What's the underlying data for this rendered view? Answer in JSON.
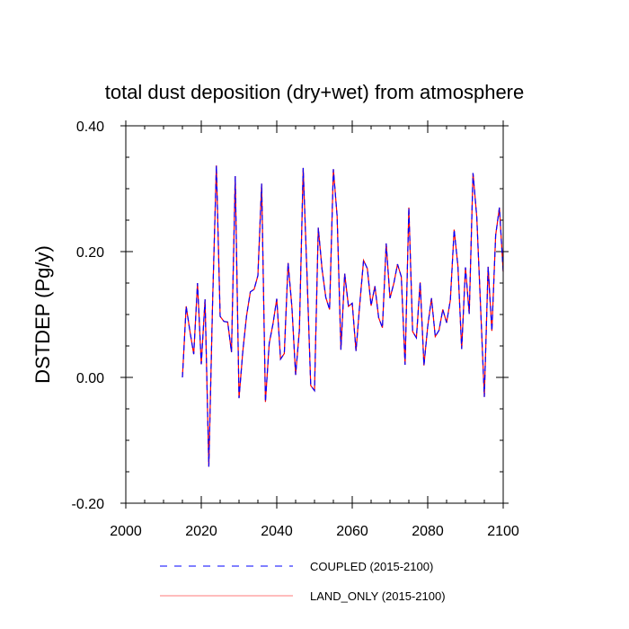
{
  "chart_data": {
    "type": "line",
    "title": "total dust deposition (dry+wet) from atmosphere",
    "xlabel": "",
    "ylabel": "DSTDEP  (Pg/y)",
    "xlim": [
      2000,
      2100
    ],
    "ylim": [
      -0.2,
      0.4
    ],
    "xticks": [
      2000,
      2020,
      2040,
      2060,
      2080,
      2100
    ],
    "xtick_labels": [
      "2000",
      "2020",
      "2040",
      "2060",
      "2080",
      "2100"
    ],
    "yticks": [
      -0.2,
      0.0,
      0.2,
      0.4
    ],
    "ytick_labels": [
      "-0.20",
      "0.00",
      "0.20",
      "0.40"
    ],
    "x": [
      2015,
      2016,
      2017,
      2018,
      2019,
      2020,
      2021,
      2022,
      2023,
      2024,
      2025,
      2026,
      2027,
      2028,
      2029,
      2030,
      2031,
      2032,
      2033,
      2034,
      2035,
      2036,
      2037,
      2038,
      2039,
      2040,
      2041,
      2042,
      2043,
      2044,
      2045,
      2046,
      2047,
      2048,
      2049,
      2050,
      2051,
      2052,
      2053,
      2054,
      2055,
      2056,
      2057,
      2058,
      2059,
      2060,
      2061,
      2062,
      2063,
      2064,
      2065,
      2066,
      2067,
      2068,
      2069,
      2070,
      2071,
      2072,
      2073,
      2074,
      2075,
      2076,
      2077,
      2078,
      2079,
      2080,
      2081,
      2082,
      2083,
      2084,
      2085,
      2086,
      2087,
      2088,
      2089,
      2090,
      2091,
      2092,
      2093,
      2094,
      2095,
      2096,
      2097,
      2098,
      2099,
      2100
    ],
    "series": [
      {
        "name": "COUPLED (2015-2100)",
        "color": "#0000ff",
        "style": "dashed",
        "values": [
          0.0,
          0.113,
          0.073,
          0.037,
          0.15,
          0.021,
          0.124,
          -0.142,
          0.12,
          0.337,
          0.097,
          0.089,
          0.088,
          0.04,
          0.32,
          -0.033,
          0.041,
          0.098,
          0.136,
          0.14,
          0.162,
          0.308,
          -0.039,
          0.054,
          0.085,
          0.125,
          0.029,
          0.038,
          0.182,
          0.113,
          0.004,
          0.075,
          0.333,
          0.166,
          -0.013,
          -0.021,
          0.238,
          0.172,
          0.127,
          0.108,
          0.331,
          0.256,
          0.044,
          0.165,
          0.113,
          0.118,
          0.042,
          0.117,
          0.186,
          0.173,
          0.114,
          0.145,
          0.095,
          0.079,
          0.213,
          0.126,
          0.149,
          0.18,
          0.16,
          0.02,
          0.27,
          0.073,
          0.063,
          0.151,
          0.019,
          0.081,
          0.126,
          0.065,
          0.075,
          0.108,
          0.087,
          0.123,
          0.235,
          0.177,
          0.045,
          0.175,
          0.101,
          0.325,
          0.255,
          0.113,
          -0.031,
          0.176,
          0.074,
          0.226,
          0.27,
          0.168
        ]
      },
      {
        "name": "LAND_ONLY (2015-2100)",
        "color": "#ff0000",
        "style": "solid",
        "values": [
          0.0,
          0.113,
          0.073,
          0.037,
          0.15,
          0.021,
          0.124,
          -0.142,
          0.12,
          0.337,
          0.097,
          0.089,
          0.088,
          0.04,
          0.32,
          -0.033,
          0.041,
          0.098,
          0.136,
          0.14,
          0.162,
          0.308,
          -0.039,
          0.054,
          0.085,
          0.125,
          0.029,
          0.038,
          0.182,
          0.113,
          0.004,
          0.075,
          0.333,
          0.166,
          -0.013,
          -0.021,
          0.238,
          0.172,
          0.127,
          0.108,
          0.331,
          0.256,
          0.044,
          0.165,
          0.113,
          0.118,
          0.042,
          0.117,
          0.186,
          0.173,
          0.114,
          0.145,
          0.095,
          0.079,
          0.213,
          0.126,
          0.149,
          0.18,
          0.16,
          0.02,
          0.27,
          0.073,
          0.063,
          0.151,
          0.019,
          0.081,
          0.126,
          0.065,
          0.075,
          0.108,
          0.087,
          0.123,
          0.235,
          0.177,
          0.045,
          0.175,
          0.101,
          0.325,
          0.255,
          0.113,
          -0.031,
          0.176,
          0.074,
          0.226,
          0.27,
          0.168
        ]
      }
    ],
    "legend": [
      "COUPLED (2015-2100)",
      "LAND_ONLY (2015-2100)"
    ]
  }
}
